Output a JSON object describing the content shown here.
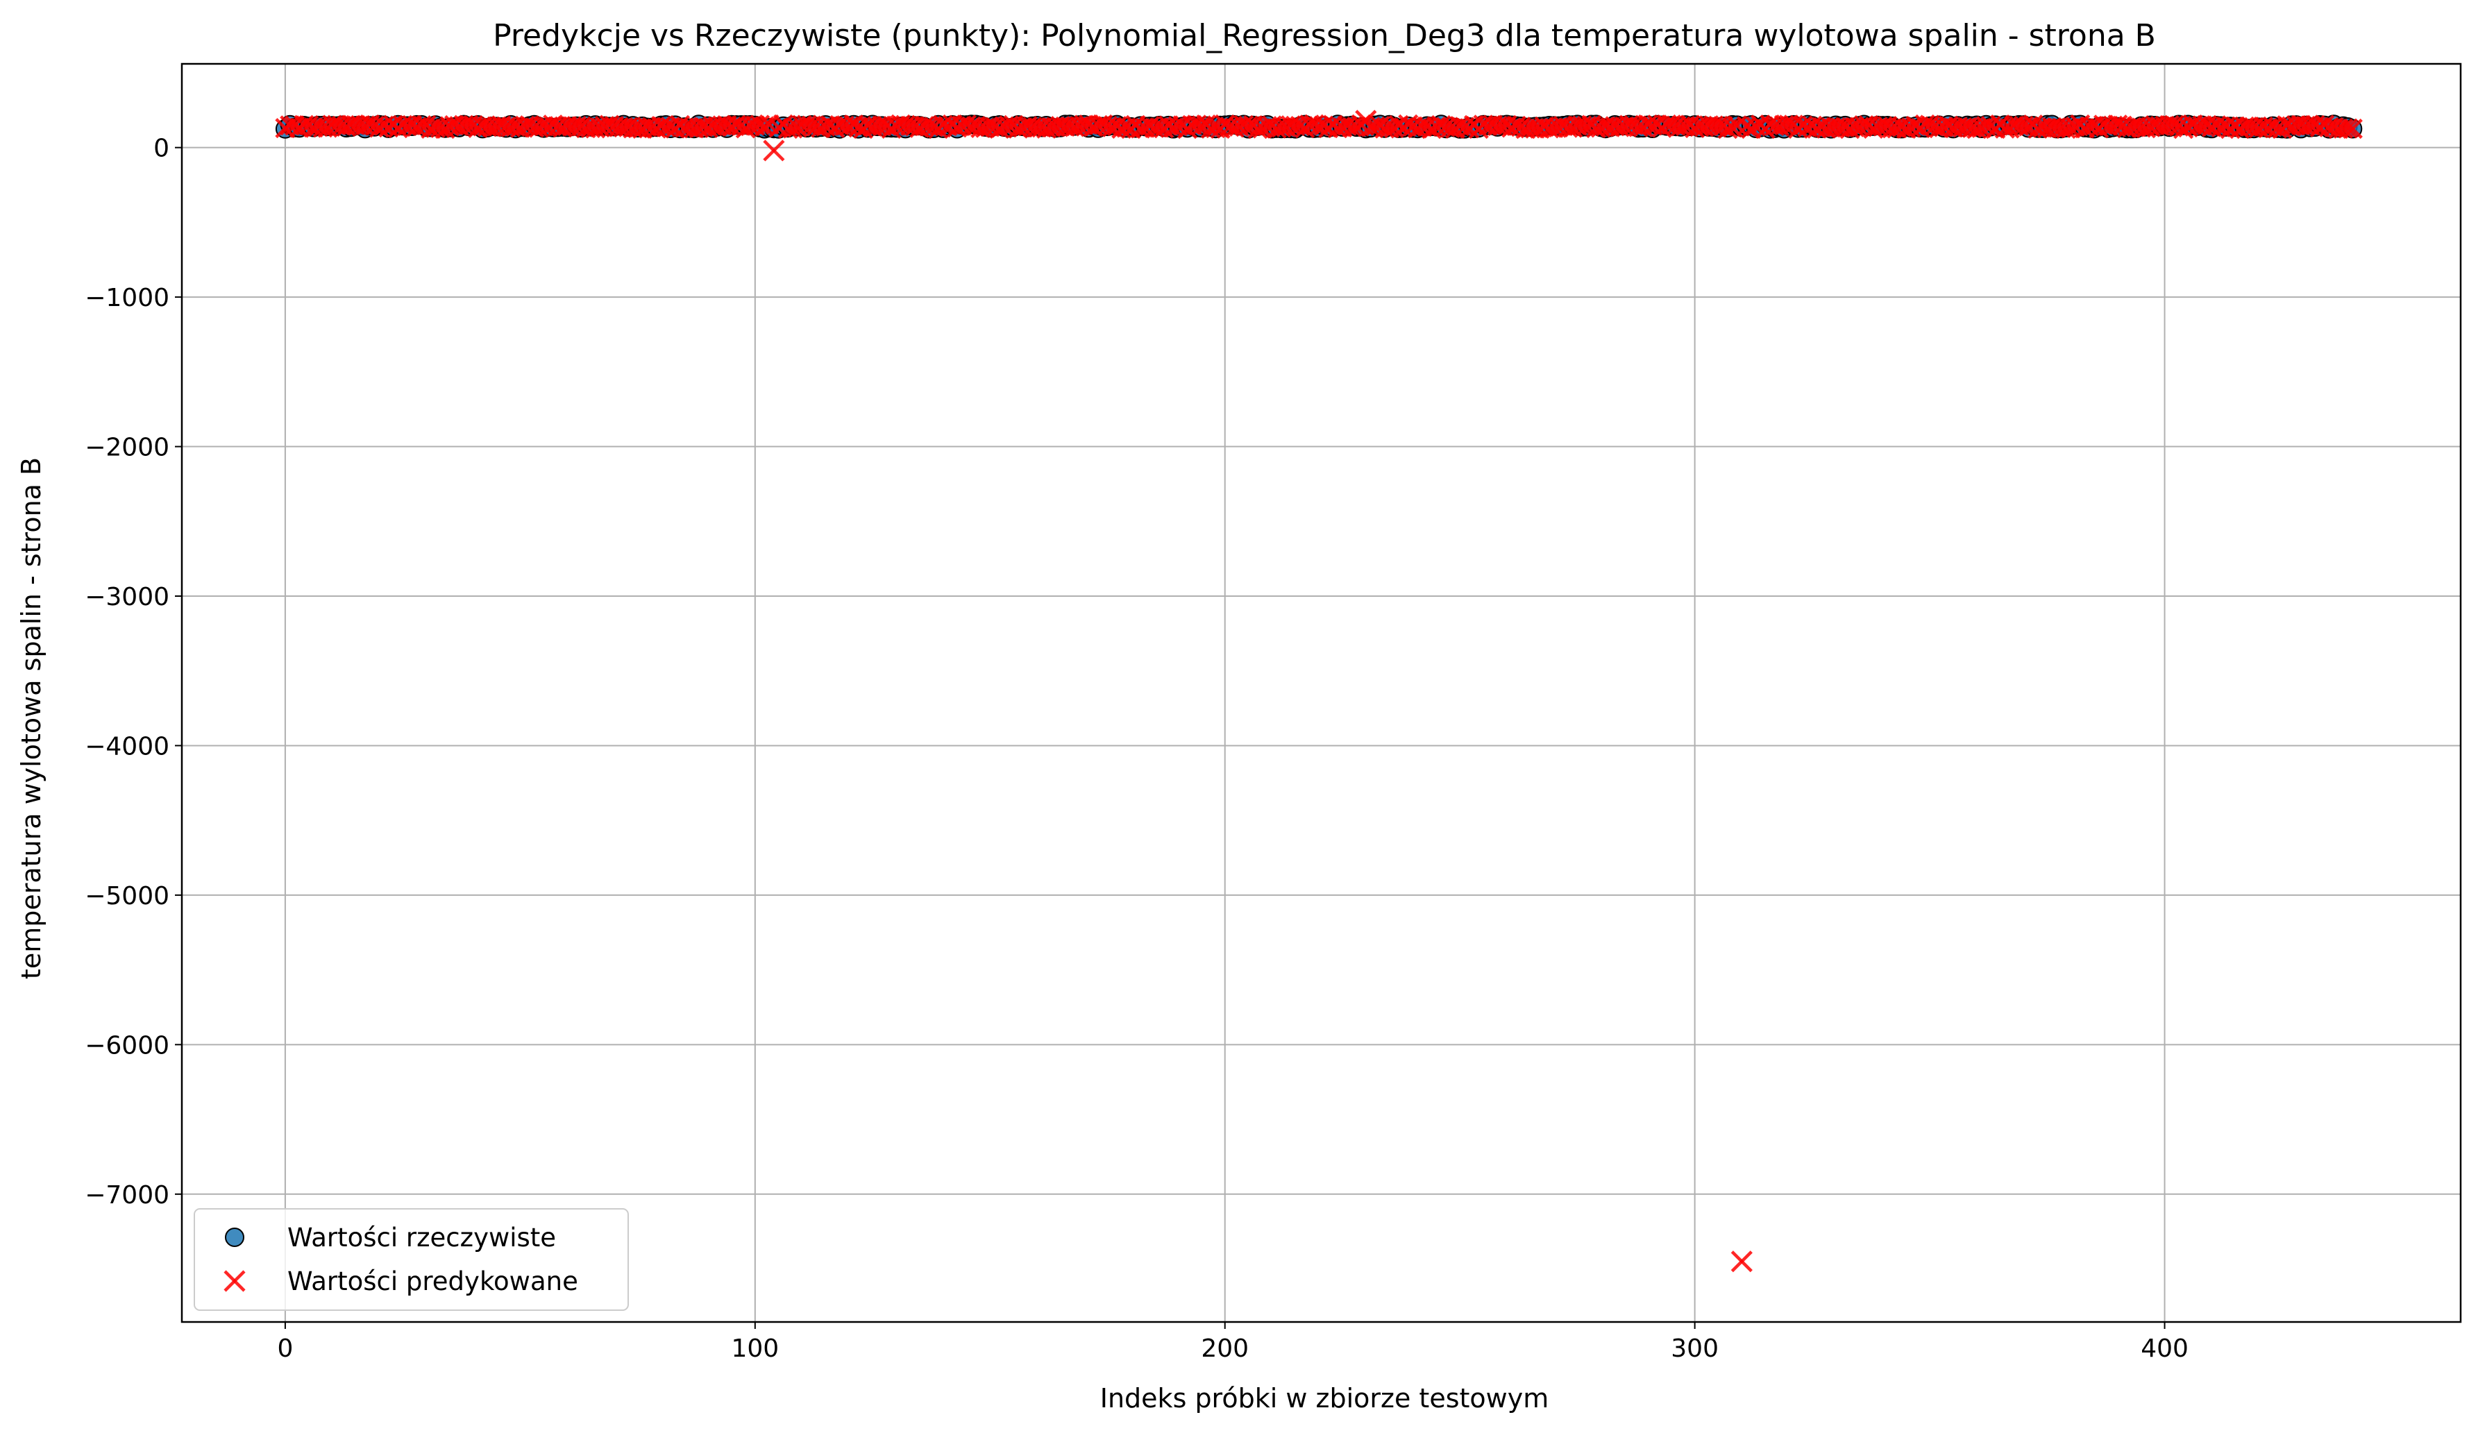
{
  "chart_data": {
    "type": "scatter",
    "title": "Predykcje vs Rzeczywiste (punkty): Polynomial_Regression_Deg3 dla temperatura wylotowa spalin - strona B",
    "xlabel": "Indeks próbki w zbiorze testowym",
    "ylabel": "temperatura wylotowa spalin - strona B",
    "xlim": [
      -22,
      463
    ],
    "ylim": [
      -7855,
      560
    ],
    "x_ticks": [
      {
        "value": 0,
        "label": "0"
      },
      {
        "value": 100,
        "label": "100"
      },
      {
        "value": 200,
        "label": "200"
      },
      {
        "value": 300,
        "label": "300"
      },
      {
        "value": 400,
        "label": "400"
      }
    ],
    "y_ticks": [
      {
        "value": 0,
        "label": "0"
      },
      {
        "value": -1000,
        "label": "−1000"
      },
      {
        "value": -2000,
        "label": "−2000"
      },
      {
        "value": -3000,
        "label": "−3000"
      },
      {
        "value": -4000,
        "label": "−4000"
      },
      {
        "value": -5000,
        "label": "−5000"
      },
      {
        "value": -6000,
        "label": "−6000"
      },
      {
        "value": -7000,
        "label": "−7000"
      }
    ],
    "grid": true,
    "legend_position": "lower-left",
    "series": [
      {
        "name": "Wartości rzeczywiste",
        "marker": "circle",
        "color": "#1f77b4",
        "edge_color": "#000000",
        "x_range": [
          0,
          440
        ],
        "y_approx": 140
      },
      {
        "name": "Wartości predykowane",
        "marker": "x",
        "color": "#ff0000",
        "x_range": [
          0,
          440
        ],
        "y_approx": 140,
        "outliers": [
          {
            "x": 104,
            "y": -20
          },
          {
            "x": 230,
            "y": 180
          },
          {
            "x": 310,
            "y": -7450
          }
        ]
      }
    ]
  }
}
